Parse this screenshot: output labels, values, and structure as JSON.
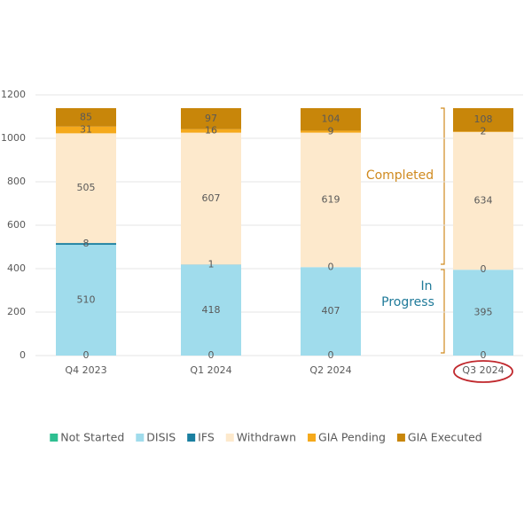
{
  "chart_data": {
    "type": "bar",
    "stacked": true,
    "categories": [
      "Q4 2023",
      "Q1 2024",
      "Q2 2024",
      "Q3 2024"
    ],
    "series": [
      {
        "name": "Not Started",
        "color": "#2ebf91",
        "values": [
          0,
          0,
          0,
          0
        ]
      },
      {
        "name": "DISIS",
        "color": "#a0dcec",
        "values": [
          510,
          418,
          407,
          395
        ]
      },
      {
        "name": "IFS",
        "color": "#1a7fa0",
        "values": [
          8,
          1,
          0,
          0
        ]
      },
      {
        "name": "Withdrawn",
        "color": "#fde9cc",
        "values": [
          505,
          607,
          619,
          634
        ]
      },
      {
        "name": "GIA Pending",
        "color": "#f5a91b",
        "values": [
          31,
          16,
          9,
          2
        ]
      },
      {
        "name": "GIA Executed",
        "color": "#c8860a",
        "values": [
          85,
          97,
          104,
          108
        ]
      }
    ],
    "ylim": [
      0,
      1200
    ],
    "yticks": [
      0,
      200,
      400,
      600,
      800,
      1000,
      1200
    ],
    "grid": true,
    "legend": "bottom",
    "annotations": [
      {
        "text": "Completed",
        "color": "#d08a1f"
      },
      {
        "text": "In",
        "color": "#1f7a99"
      },
      {
        "text": "Progress",
        "color": "#1f7a99"
      }
    ]
  }
}
